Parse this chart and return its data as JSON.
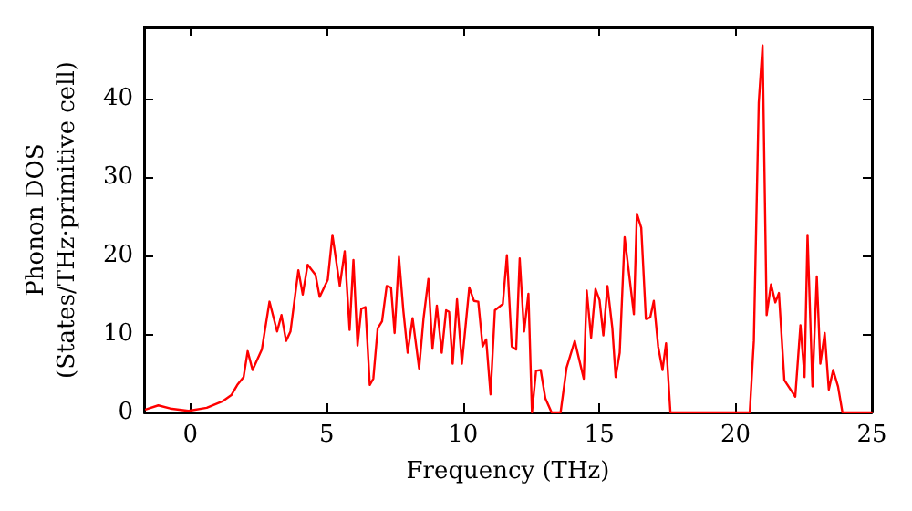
{
  "chart_data": {
    "type": "line",
    "xlabel": "Frequency (THz)",
    "ylabel": "Phonon DOS\n(States/THz·primitive cell)",
    "xlim": [
      -1.7,
      25
    ],
    "xticks": [
      0,
      5,
      10,
      15,
      20,
      25
    ],
    "ylim": [
      0,
      49
    ],
    "yticks": [
      0,
      10,
      20,
      30,
      40
    ],
    "grid": false,
    "marker": "none",
    "line_style": "solid",
    "series": [
      {
        "color": "#ff0000",
        "x": [
          -1.63,
          -1.18,
          -0.74,
          -0.07,
          0.6,
          1.17,
          1.5,
          1.72,
          1.95,
          2.1,
          2.28,
          2.62,
          2.9,
          3.18,
          3.34,
          3.51,
          3.67,
          3.96,
          4.12,
          4.3,
          4.59,
          4.74,
          5.04,
          5.21,
          5.48,
          5.66,
          5.84,
          5.98,
          6.13,
          6.27,
          6.42,
          6.58,
          6.71,
          6.87,
          7.03,
          7.2,
          7.36,
          7.49,
          7.65,
          7.81,
          7.97,
          8.15,
          8.39,
          8.55,
          8.73,
          8.88,
          9.04,
          9.22,
          9.38,
          9.49,
          9.62,
          9.78,
          9.96,
          10.23,
          10.4,
          10.56,
          10.72,
          10.85,
          11.01,
          11.17,
          11.46,
          11.61,
          11.79,
          11.95,
          12.08,
          12.24,
          12.4,
          12.53,
          12.68,
          12.85,
          13.02,
          13.25,
          13.58,
          13.8,
          14.1,
          14.43,
          14.54,
          14.7,
          14.86,
          15.01,
          15.15,
          15.3,
          15.48,
          15.6,
          15.75,
          15.93,
          16.09,
          16.27,
          16.38,
          16.54,
          16.71,
          16.87,
          17.0,
          17.16,
          17.32,
          17.45,
          17.61,
          20.52,
          20.67,
          20.85,
          20.99,
          21.14,
          21.3,
          21.46,
          21.59,
          21.79,
          22.19,
          22.38,
          22.53,
          22.64,
          22.82,
          22.98,
          23.11,
          23.27,
          23.42,
          23.58,
          23.76,
          23.92,
          24.99
        ],
        "values": [
          0.4,
          0.9,
          0.5,
          0.2,
          0.6,
          1.4,
          2.2,
          3.5,
          4.5,
          7.8,
          5.4,
          8,
          14.1,
          10.3,
          12.4,
          9.1,
          10.3,
          18.1,
          15,
          18.8,
          17.5,
          14.7,
          16.9,
          22.6,
          16.1,
          20.5,
          10.5,
          19.4,
          8.5,
          13.2,
          13.4,
          3.5,
          4.3,
          10.7,
          11.6,
          16.1,
          15.9,
          10.1,
          19.8,
          13,
          7.6,
          12,
          5.6,
          11.9,
          17,
          8.1,
          13.6,
          7.6,
          13,
          12.8,
          6.2,
          14.4,
          6.2,
          15.9,
          14.2,
          14.1,
          8.4,
          9.3,
          2.3,
          13,
          13.8,
          20,
          8.4,
          8,
          19.6,
          10.3,
          15.1,
          0,
          5.3,
          5.4,
          1.8,
          0,
          0,
          5.7,
          9.1,
          4.3,
          15.5,
          9.5,
          15.7,
          14.3,
          9.8,
          16.1,
          10.7,
          4.5,
          7.6,
          22.3,
          17.7,
          12.5,
          25.3,
          23.5,
          11.9,
          12.1,
          14.2,
          8.4,
          5.4,
          8.8,
          0,
          0,
          9.1,
          39.4,
          46.7,
          12.4,
          16.3,
          14,
          15.2,
          4.1,
          2,
          11.1,
          4.5,
          22.6,
          3.3,
          17.3,
          6.2,
          10.1,
          2.9,
          5.4,
          3.3,
          0,
          0
        ]
      }
    ]
  }
}
